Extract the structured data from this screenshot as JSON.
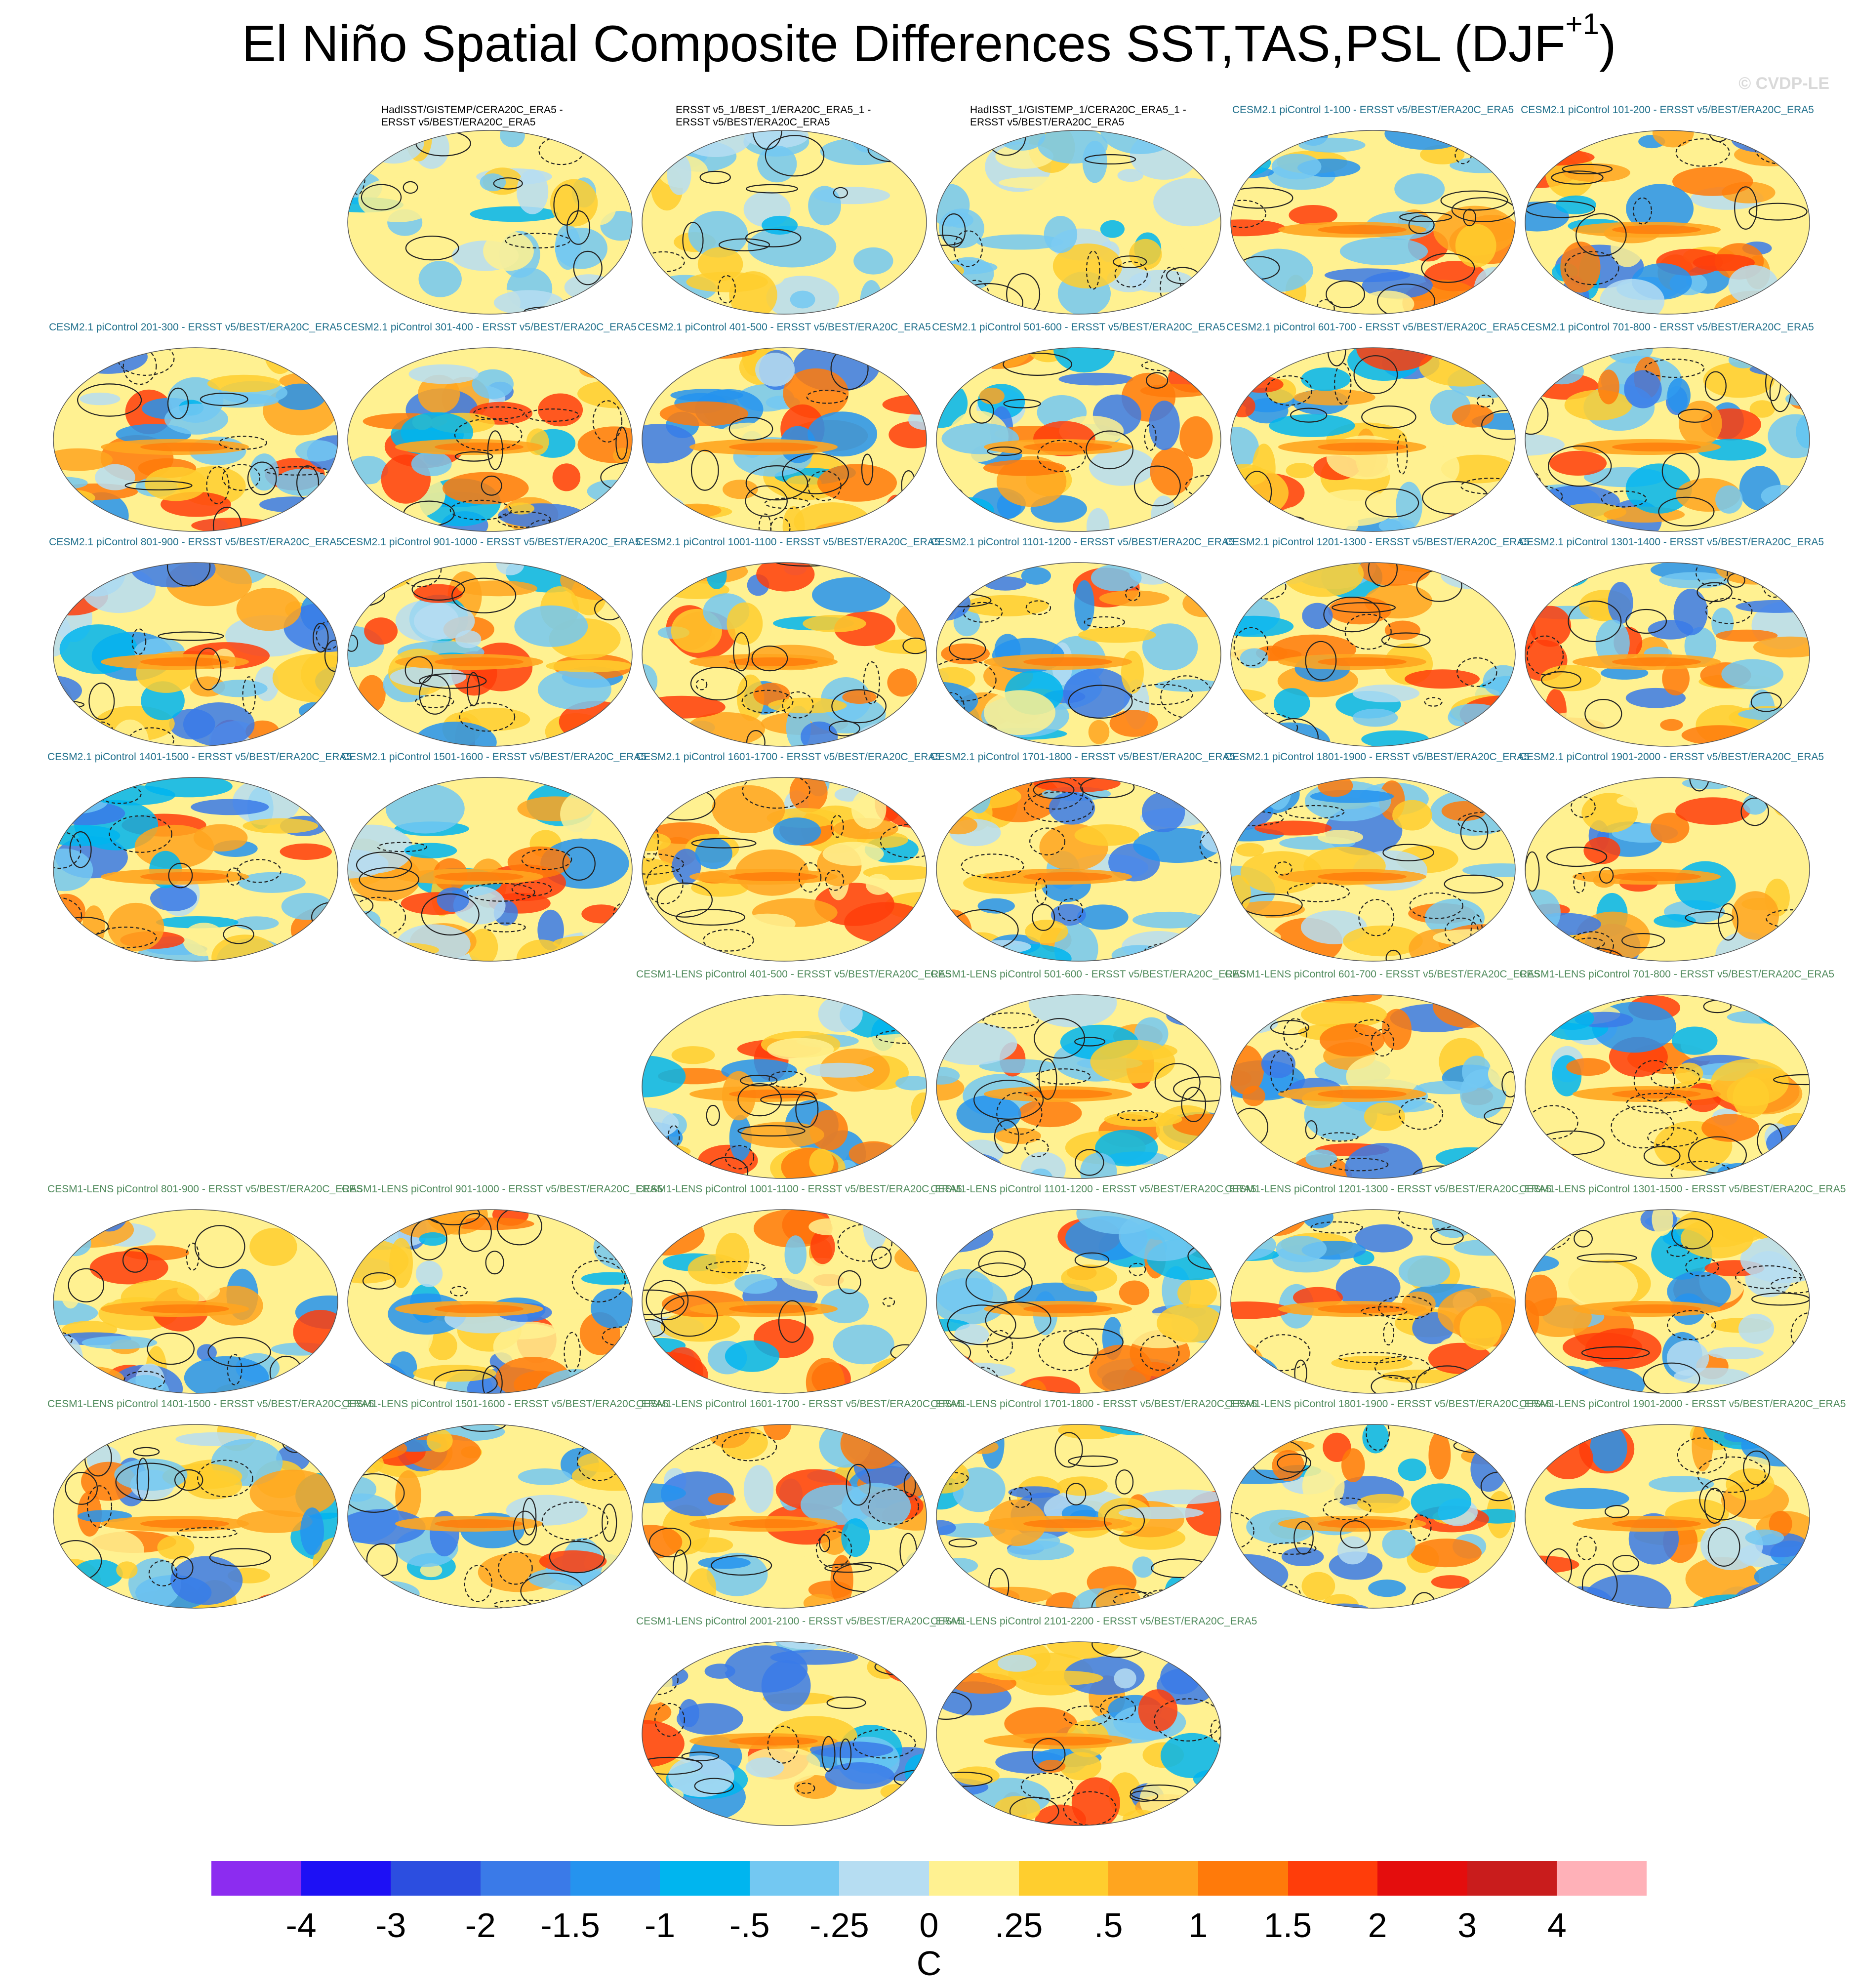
{
  "title": "El Niño Spatial Composite Differences SST,TAS,PSL (DJF",
  "title_sup": "+1",
  "title_end": ")",
  "watermark": "© CVDP-LE",
  "units": "C",
  "colorbar": {
    "labels": [
      "-4",
      "-3",
      "-2",
      "-1.5",
      "-1",
      "-.5",
      "-.25",
      "0",
      ".25",
      ".5",
      "1",
      "1.5",
      "2",
      "3",
      "4"
    ],
    "colors": [
      "#8c2cf0",
      "#1d10f5",
      "#2c4ee0",
      "#3a7ae8",
      "#2593ef",
      "#00b5ef",
      "#73c8f2",
      "#b6ddf2",
      "#fff191",
      "#ffce2e",
      "#ffa51f",
      "#ff7a0a",
      "#ff3d0a",
      "#e40d0d",
      "#c91c1c",
      "#ffb1b8"
    ]
  },
  "panels": [
    {
      "title": "HadISST/GISTEMP/CERA20C_ERA5 -\nERSST v5/BEST/ERA20C_ERA5",
      "group": "obs",
      "seed": 11
    },
    {
      "title": "ERSST v5_1/BEST_1/ERA20C_ERA5_1 -\nERSST v5/BEST/ERA20C_ERA5",
      "group": "obs",
      "seed": 12
    },
    {
      "title": "HadISST_1/GISTEMP_1/CERA20C_ERA5_1 -\nERSST v5/BEST/ERA20C_ERA5",
      "group": "obs",
      "seed": 13
    },
    {
      "title": "CESM2.1 piControl 1-100 - ERSST v5/BEST/ERA20C_ERA5",
      "group": "cesm2",
      "seed": 21
    },
    {
      "title": "CESM2.1 piControl 101-200 - ERSST v5/BEST/ERA20C_ERA5",
      "group": "cesm2",
      "seed": 22
    },
    {
      "title": "CESM2.1 piControl 201-300 - ERSST v5/BEST/ERA20C_ERA5",
      "group": "cesm2",
      "seed": 23
    },
    {
      "title": "CESM2.1 piControl 301-400 - ERSST v5/BEST/ERA20C_ERA5",
      "group": "cesm2",
      "seed": 24
    },
    {
      "title": "CESM2.1 piControl 401-500 - ERSST v5/BEST/ERA20C_ERA5",
      "group": "cesm2",
      "seed": 25
    },
    {
      "title": "CESM2.1 piControl 501-600 - ERSST v5/BEST/ERA20C_ERA5",
      "group": "cesm2",
      "seed": 26
    },
    {
      "title": "CESM2.1 piControl 601-700 - ERSST v5/BEST/ERA20C_ERA5",
      "group": "cesm2",
      "seed": 27
    },
    {
      "title": "CESM2.1 piControl 701-800 - ERSST v5/BEST/ERA20C_ERA5",
      "group": "cesm2",
      "seed": 28
    },
    {
      "title": "CESM2.1 piControl 801-900 - ERSST v5/BEST/ERA20C_ERA5",
      "group": "cesm2",
      "seed": 29
    },
    {
      "title": "CESM2.1 piControl 901-1000 - ERSST v5/BEST/ERA20C_ERA5",
      "group": "cesm2",
      "seed": 30
    },
    {
      "title": "CESM2.1 piControl 1001-1100 - ERSST v5/BEST/ERA20C_ERA5",
      "group": "cesm2",
      "seed": 31
    },
    {
      "title": "CESM2.1 piControl 1101-1200 - ERSST v5/BEST/ERA20C_ERA5",
      "group": "cesm2",
      "seed": 32
    },
    {
      "title": "CESM2.1 piControl 1201-1300 - ERSST v5/BEST/ERA20C_ERA5",
      "group": "cesm2",
      "seed": 33
    },
    {
      "title": "CESM2.1 piControl 1301-1400 - ERSST v5/BEST/ERA20C_ERA5",
      "group": "cesm2",
      "seed": 34
    },
    {
      "title": "CESM2.1 piControl 1401-1500 - ERSST v5/BEST/ERA20C_ERA5",
      "group": "cesm2",
      "seed": 35
    },
    {
      "title": "CESM2.1 piControl 1501-1600 - ERSST v5/BEST/ERA20C_ERA5",
      "group": "cesm2",
      "seed": 36
    },
    {
      "title": "CESM2.1 piControl 1601-1700 - ERSST v5/BEST/ERA20C_ERA5",
      "group": "cesm2",
      "seed": 37
    },
    {
      "title": "CESM2.1 piControl 1701-1800 - ERSST v5/BEST/ERA20C_ERA5",
      "group": "cesm2",
      "seed": 38
    },
    {
      "title": "CESM2.1 piControl 1801-1900 - ERSST v5/BEST/ERA20C_ERA5",
      "group": "cesm2",
      "seed": 39
    },
    {
      "title": "CESM2.1 piControl 1901-2000 - ERSST v5/BEST/ERA20C_ERA5",
      "group": "cesm2",
      "seed": 40
    },
    {
      "title": "CESM1-LENS piControl 401-500 - ERSST v5/BEST/ERA20C_ERA5",
      "group": "lens",
      "seed": 51
    },
    {
      "title": "CESM1-LENS piControl 501-600 - ERSST v5/BEST/ERA20C_ERA5",
      "group": "lens",
      "seed": 52
    },
    {
      "title": "CESM1-LENS piControl 601-700 - ERSST v5/BEST/ERA20C_ERA5",
      "group": "lens",
      "seed": 53
    },
    {
      "title": "CESM1-LENS piControl 701-800 - ERSST v5/BEST/ERA20C_ERA5",
      "group": "lens",
      "seed": 54
    },
    {
      "title": "CESM1-LENS piControl 801-900 - ERSST v5/BEST/ERA20C_ERA5",
      "group": "lens",
      "seed": 55
    },
    {
      "title": "CESM1-LENS piControl 901-1000 - ERSST v5/BEST/ERA20C_ERA5",
      "group": "lens",
      "seed": 56
    },
    {
      "title": "CESM1-LENS piControl 1001-1100 - ERSST v5/BEST/ERA20C_ERA5",
      "group": "lens",
      "seed": 57
    },
    {
      "title": "CESM1-LENS piControl 1101-1200 - ERSST v5/BEST/ERA20C_ERA5",
      "group": "lens",
      "seed": 58
    },
    {
      "title": "CESM1-LENS piControl 1201-1300 - ERSST v5/BEST/ERA20C_ERA5",
      "group": "lens",
      "seed": 59
    },
    {
      "title": "CESM1-LENS piControl 1301-1500 - ERSST v5/BEST/ERA20C_ERA5",
      "group": "lens",
      "seed": 60
    },
    {
      "title": "CESM1-LENS piControl 1401-1500 - ERSST v5/BEST/ERA20C_ERA5",
      "group": "lens",
      "seed": 61
    },
    {
      "title": "CESM1-LENS piControl 1501-1600 - ERSST v5/BEST/ERA20C_ERA5",
      "group": "lens",
      "seed": 62
    },
    {
      "title": "CESM1-LENS piControl 1601-1700 - ERSST v5/BEST/ERA20C_ERA5",
      "group": "lens",
      "seed": 63
    },
    {
      "title": "CESM1-LENS piControl 1701-1800 - ERSST v5/BEST/ERA20C_ERA5",
      "group": "lens",
      "seed": 64
    },
    {
      "title": "CESM1-LENS piControl 1801-1900 - ERSST v5/BEST/ERA20C_ERA5",
      "group": "lens",
      "seed": 65
    },
    {
      "title": "CESM1-LENS piControl 1901-2000 - ERSST v5/BEST/ERA20C_ERA5",
      "group": "lens",
      "seed": 66
    },
    {
      "title": "CESM1-LENS piControl 2001-2100 - ERSST v5/BEST/ERA20C_ERA5",
      "group": "lens",
      "seed": 67
    },
    {
      "title": "CESM1-LENS piControl 2101-2200 - ERSST v5/BEST/ERA20C_ERA5",
      "group": "lens",
      "seed": 68
    }
  ]
}
